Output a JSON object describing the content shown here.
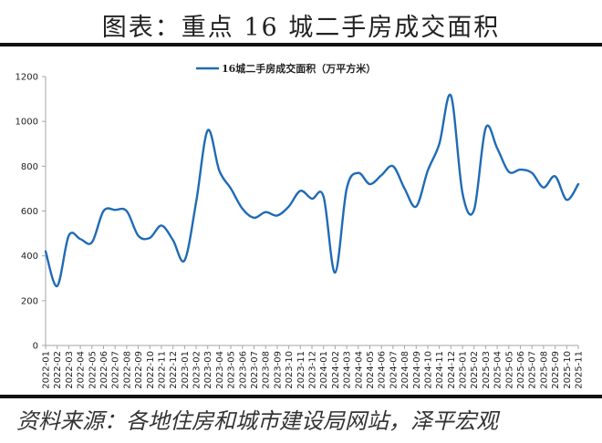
{
  "header": {
    "title": "图表：重点 16 城二手房成交面积"
  },
  "footer": {
    "source": "资料来源：各地住房和城市建设局网站，泽平宏观"
  },
  "colors": {
    "line": "#1f6bb5",
    "axis": "#a6a6a6"
  },
  "chart_data": {
    "type": "line",
    "title": "图表：重点 16 城二手房成交面积",
    "xlabel": "",
    "ylabel": "",
    "ylim": [
      0,
      1200
    ],
    "yticks": [
      0,
      200,
      400,
      600,
      800,
      1000,
      1200
    ],
    "grid": false,
    "legend_position": "top",
    "categories": [
      "2022-01",
      "2022-02",
      "2022-03",
      "2022-04",
      "2022-05",
      "2022-06",
      "2022-07",
      "2022-08",
      "2022-09",
      "2022-10",
      "2022-11",
      "2022-12",
      "2023-01",
      "2023-02",
      "2023-03",
      "2023-04",
      "2023-05",
      "2023-06",
      "2023-07",
      "2023-08",
      "2023-09",
      "2023-10",
      "2023-11",
      "2023-12",
      "2024-01",
      "2024-02",
      "2024-03",
      "2024-04",
      "2024-05",
      "2024-06",
      "2024-07",
      "2024-08",
      "2024-09",
      "2024-10",
      "2024-11",
      "2024-12",
      "2025-01",
      "2025-02",
      "2025-03",
      "2025-04",
      "2025-05",
      "2025-06",
      "2025-07",
      "2025-08",
      "2025-09",
      "2025-10",
      "2025-11"
    ],
    "series": [
      {
        "name": "16城二手房成交面积（万平方米）",
        "values": [
          420,
          265,
          490,
          475,
          460,
          600,
          605,
          600,
          490,
          480,
          535,
          470,
          380,
          640,
          960,
          780,
          700,
          610,
          570,
          595,
          580,
          620,
          690,
          655,
          665,
          325,
          700,
          770,
          720,
          760,
          800,
          700,
          620,
          780,
          900,
          1115,
          680,
          605,
          970,
          880,
          775,
          785,
          770,
          705,
          755,
          650,
          720
        ]
      }
    ]
  }
}
